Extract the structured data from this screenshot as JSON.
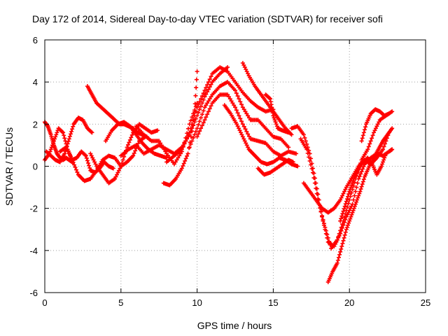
{
  "chart_data": {
    "type": "scatter",
    "title": "Day 172 of 2014, Sidereal Day-to-day VTEC variation (SDTVAR) for receiver sofi",
    "xlabel": "GPS time / hours",
    "ylabel": "SDTVAR / TECUs",
    "xlim": [
      0,
      25
    ],
    "ylim": [
      -6,
      6
    ],
    "x_ticks": [
      0,
      5,
      10,
      15,
      20,
      25
    ],
    "x_tick_labels": [
      "0",
      "5",
      "10",
      "15",
      "20",
      "25"
    ],
    "y_ticks": [
      -6,
      -4,
      -2,
      0,
      2,
      4,
      6
    ],
    "y_tick_labels": [
      "-6",
      "-4",
      "-2",
      "0",
      "2",
      "4",
      "6"
    ],
    "grid": true,
    "marker": "+",
    "marker_color": "#ff0000",
    "series": [
      {
        "x": [
          0.0,
          0.2,
          0.4,
          0.6,
          0.8,
          1.0,
          1.2,
          1.4,
          1.6,
          1.8
        ],
        "y": [
          2.1,
          1.9,
          1.5,
          1.0,
          0.6,
          0.4,
          0.3,
          0.4,
          0.3,
          0.2
        ]
      },
      {
        "x": [
          0.0,
          0.3,
          0.6,
          0.9,
          1.2,
          1.5,
          1.8,
          2.1,
          2.4,
          2.7,
          3.0,
          3.3,
          3.6,
          3.9,
          4.2,
          4.5
        ],
        "y": [
          0.3,
          0.6,
          1.2,
          1.8,
          1.6,
          0.8,
          0.3,
          0.4,
          0.7,
          0.5,
          -0.2,
          -0.3,
          -0.1,
          0.2,
          0.0,
          -0.1
        ]
      },
      {
        "x": [
          0.1,
          0.4,
          0.7,
          1.0,
          1.3,
          1.6,
          1.9,
          2.2,
          2.5,
          2.8,
          3.1
        ],
        "y": [
          0.7,
          0.5,
          0.3,
          0.2,
          0.6,
          1.3,
          2.0,
          2.3,
          2.2,
          1.8,
          1.6
        ]
      },
      {
        "x": [
          1.0,
          1.4,
          1.8,
          2.2,
          2.6,
          3.0,
          3.4,
          3.8,
          4.2,
          4.6,
          5.0,
          5.4,
          5.8,
          6.2,
          6.6
        ],
        "y": [
          0.7,
          0.9,
          0.3,
          -0.4,
          -0.7,
          -0.6,
          -0.2,
          0.3,
          0.5,
          0.4,
          0.0,
          0.2,
          0.5,
          1.2,
          1.4
        ]
      },
      {
        "x": [
          2.8,
          3.1,
          3.4,
          3.7,
          4.0,
          4.3,
          4.6,
          4.9,
          5.2,
          5.5,
          5.8,
          6.1,
          6.4,
          6.7
        ],
        "y": [
          3.8,
          3.4,
          3.0,
          2.8,
          2.6,
          2.4,
          2.2,
          2.0,
          2.0,
          1.9,
          1.8,
          1.6,
          1.5,
          1.4
        ]
      },
      {
        "x": [
          3.0,
          3.4,
          3.8,
          4.2,
          4.6,
          5.0,
          5.4,
          5.8,
          6.2,
          6.6,
          7.0,
          7.4
        ],
        "y": [
          0.6,
          0.0,
          -0.4,
          -0.8,
          -0.6,
          0.0,
          0.9,
          1.6,
          2.0,
          1.8,
          1.6,
          1.7
        ]
      },
      {
        "x": [
          4.0,
          4.4,
          4.8,
          5.2,
          5.6,
          6.0,
          6.4,
          6.8,
          7.2,
          7.6,
          8.0
        ],
        "y": [
          1.2,
          1.7,
          2.0,
          2.1,
          1.9,
          1.5,
          1.1,
          0.8,
          0.6,
          0.5,
          0.4
        ]
      },
      {
        "x": [
          5.0,
          5.5,
          6.0,
          6.5,
          7.0,
          7.5,
          8.0,
          8.5,
          9.0,
          9.5,
          10.0,
          10.5,
          11.0,
          11.5,
          12.0
        ],
        "y": [
          0.5,
          0.8,
          1.0,
          0.6,
          0.8,
          1.0,
          0.8,
          0.6,
          0.9,
          1.5,
          2.4,
          3.3,
          4.0,
          4.4,
          4.7
        ]
      },
      {
        "x": [
          6.0,
          6.5,
          7.0,
          7.5,
          8.0,
          8.5,
          9.0,
          9.5,
          10.0
        ],
        "y": [
          1.9,
          1.5,
          1.2,
          1.2,
          0.6,
          0.1,
          0.7,
          2.0,
          3.0
        ]
      },
      {
        "x": [
          7.8,
          8.2,
          8.6,
          9.0,
          9.4,
          9.8,
          10.0
        ],
        "y": [
          -0.8,
          -0.9,
          -0.6,
          -0.1,
          0.6,
          2.2,
          4.5
        ]
      },
      {
        "x": [
          8.0,
          8.5,
          9.0,
          9.5,
          10.0,
          10.5,
          11.0,
          11.5,
          12.0,
          12.5,
          13.0,
          13.5,
          14.0,
          14.5,
          15.0
        ],
        "y": [
          0.2,
          0.5,
          0.8,
          1.6,
          2.8,
          3.6,
          4.4,
          4.7,
          4.5,
          4.0,
          3.5,
          3.1,
          2.8,
          2.6,
          2.7
        ]
      },
      {
        "x": [
          9.5,
          10.0,
          10.5,
          11.0,
          11.5,
          12.0,
          12.5,
          13.0,
          13.5,
          14.0,
          14.5,
          15.0,
          15.5,
          16.0
        ],
        "y": [
          0.9,
          1.8,
          2.8,
          3.4,
          3.8,
          4.0,
          3.6,
          2.8,
          2.2,
          2.2,
          1.8,
          1.4,
          1.3,
          0.9
        ]
      },
      {
        "x": [
          10.0,
          10.5,
          11.0,
          11.5,
          12.0,
          12.5,
          13.0,
          13.5,
          14.0,
          14.5,
          15.0,
          15.5,
          16.0,
          16.5
        ],
        "y": [
          1.4,
          2.2,
          3.0,
          3.4,
          3.4,
          2.8,
          2.0,
          1.3,
          1.2,
          1.1,
          0.7,
          0.5,
          0.7,
          0.6
        ]
      },
      {
        "x": [
          11.8,
          12.2,
          12.6,
          13.0,
          13.4,
          13.8,
          14.2,
          14.6,
          15.0,
          15.4,
          15.8,
          16.2,
          16.6
        ],
        "y": [
          2.9,
          2.5,
          2.0,
          1.4,
          0.8,
          0.5,
          0.2,
          0.1,
          0.2,
          0.4,
          0.3,
          0.1,
          0.0
        ]
      },
      {
        "x": [
          13.0,
          13.4,
          13.8,
          14.2,
          14.6,
          15.0,
          15.4,
          15.8,
          16.2
        ],
        "y": [
          4.9,
          4.3,
          3.8,
          3.4,
          3.0,
          2.6,
          2.2,
          1.8,
          1.5
        ]
      },
      {
        "x": [
          14.0,
          14.4,
          14.8,
          15.2,
          15.6,
          16.0,
          16.3
        ],
        "y": [
          -0.1,
          -0.4,
          -0.3,
          -0.1,
          0.1,
          0.3,
          0.2
        ]
      },
      {
        "x": [
          14.5,
          14.8,
          15.0,
          15.3,
          15.6,
          16.0
        ],
        "y": [
          3.4,
          3.2,
          2.4,
          1.8,
          1.7,
          1.6
        ]
      },
      {
        "x": [
          16.2,
          16.6,
          17.0,
          17.4,
          17.8,
          18.2,
          18.6,
          19.0,
          19.4,
          19.8,
          20.2,
          20.6,
          21.0,
          21.4,
          21.8,
          22.2,
          22.6,
          22.8
        ],
        "y": [
          1.8,
          1.9,
          1.5,
          0.6,
          -0.8,
          -2.4,
          -3.6,
          -3.8,
          -3.2,
          -2.4,
          -1.8,
          -0.6,
          0.1,
          0.4,
          0.6,
          0.5,
          0.7,
          0.8
        ]
      },
      {
        "x": [
          16.8,
          17.2,
          17.6,
          18.0,
          18.4,
          18.8,
          19.2,
          19.6,
          20.0,
          20.4,
          20.8,
          21.2,
          21.6,
          22.0,
          22.4,
          22.8
        ],
        "y": [
          1.3,
          0.8,
          -0.3,
          -1.8,
          -2.9,
          -3.9,
          -3.5,
          -2.6,
          -1.6,
          -0.6,
          0.3,
          0.8,
          1.6,
          2.2,
          2.4,
          2.6
        ]
      },
      {
        "x": [
          17.0,
          17.4,
          17.8,
          18.2,
          18.6,
          19.0,
          19.4,
          19.8,
          20.2,
          20.6,
          21.0,
          21.4,
          21.8,
          22.2,
          22.6
        ],
        "y": [
          -0.8,
          -1.2,
          -1.6,
          -2.0,
          -2.2,
          -2.0,
          -1.6,
          -1.0,
          -0.5,
          0.0,
          0.3,
          0.1,
          0.4,
          0.8,
          1.6
        ]
      },
      {
        "x": [
          18.6,
          18.9,
          19.2,
          19.5,
          19.8,
          20.1,
          20.4,
          20.7,
          21.0,
          21.3,
          21.6,
          21.9,
          22.2,
          22.5,
          22.8
        ],
        "y": [
          -5.5,
          -5.0,
          -4.6,
          -3.8,
          -3.0,
          -2.4,
          -1.8,
          -1.2,
          -0.5,
          0.0,
          0.4,
          0.8,
          1.2,
          1.5,
          1.8
        ]
      },
      {
        "x": [
          19.4,
          19.7,
          20.0,
          20.3,
          20.6,
          20.9,
          21.2,
          21.5,
          21.8,
          22.1,
          22.4
        ],
        "y": [
          -2.6,
          -1.9,
          -1.2,
          -0.6,
          -0.1,
          0.2,
          0.4,
          0.1,
          -0.4,
          0.0,
          0.6
        ]
      },
      {
        "x": [
          20.8,
          21.1,
          21.4,
          21.7,
          22.0,
          22.3,
          22.6
        ],
        "y": [
          1.2,
          2.0,
          2.5,
          2.7,
          2.6,
          2.4,
          2.5
        ]
      }
    ]
  }
}
